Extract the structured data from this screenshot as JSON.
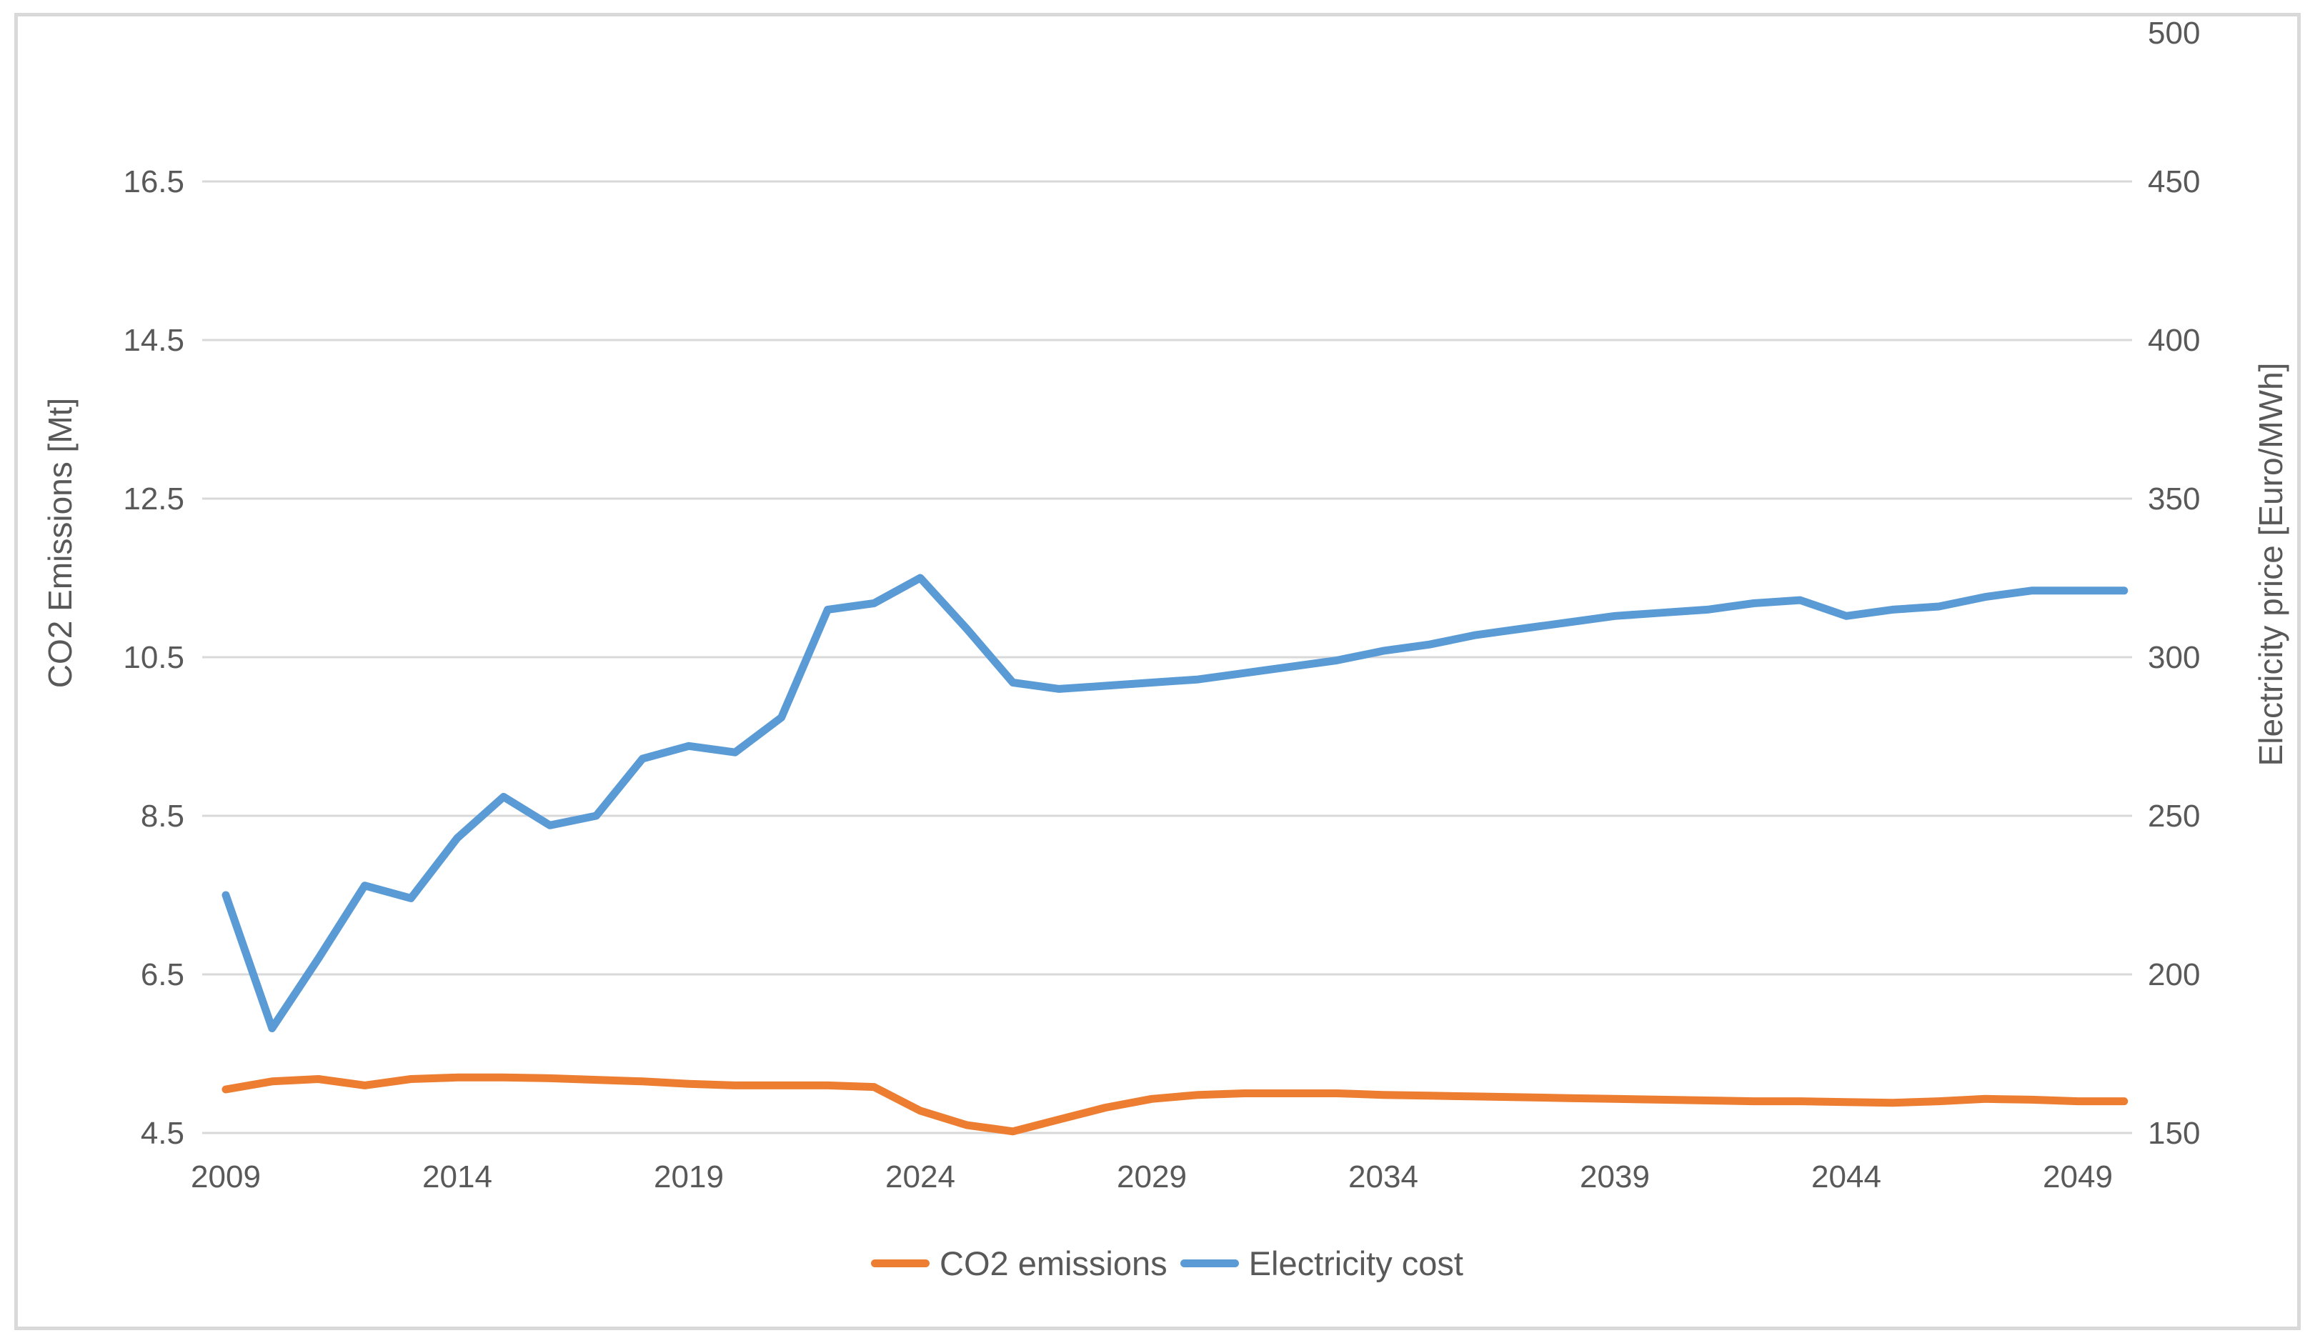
{
  "chart_data": {
    "type": "line",
    "title": "",
    "x": [
      2009,
      2010,
      2011,
      2012,
      2013,
      2014,
      2015,
      2016,
      2017,
      2018,
      2019,
      2020,
      2021,
      2022,
      2023,
      2024,
      2025,
      2026,
      2027,
      2028,
      2029,
      2030,
      2031,
      2032,
      2033,
      2034,
      2035,
      2036,
      2037,
      2038,
      2039,
      2040,
      2041,
      2042,
      2043,
      2044,
      2045,
      2046,
      2047,
      2048,
      2049,
      2050
    ],
    "x_tick_labels": [
      "2009",
      "2014",
      "2019",
      "2024",
      "2029",
      "2034",
      "2039",
      "2044",
      "2049"
    ],
    "series": [
      {
        "name": "CO2 emissions",
        "axis": "left",
        "color": "#ED7D31",
        "values": [
          5.05,
          5.15,
          5.18,
          5.1,
          5.18,
          5.2,
          5.2,
          5.19,
          5.17,
          5.15,
          5.12,
          5.1,
          5.1,
          5.1,
          5.08,
          4.78,
          4.6,
          4.52,
          4.67,
          4.82,
          4.93,
          4.98,
          5.0,
          5.0,
          5.0,
          4.98,
          4.97,
          4.96,
          4.95,
          4.94,
          4.93,
          4.92,
          4.91,
          4.9,
          4.9,
          4.89,
          4.88,
          4.9,
          4.93,
          4.92,
          4.9,
          4.9
        ]
      },
      {
        "name": "Electricity cost",
        "axis": "right",
        "color": "#5B9BD5",
        "values": [
          225,
          183,
          205,
          228,
          224,
          243,
          256,
          247,
          250,
          268,
          272,
          270,
          281,
          315,
          317,
          325,
          309,
          292,
          290,
          291,
          292,
          293,
          295,
          297,
          299,
          302,
          304,
          307,
          309,
          311,
          313,
          314,
          315,
          317,
          318,
          313,
          315,
          316,
          319,
          321,
          321,
          321
        ]
      }
    ],
    "left_axis": {
      "title": "CO2 Emissions [Mt]",
      "ticks": [
        16.5,
        14.5,
        12.5,
        10.5,
        8.5,
        6.5,
        4.5
      ],
      "min": 4.5,
      "max": 18.5
    },
    "right_axis": {
      "title": "Electricity price [Euro/MWh]",
      "ticks": [
        500,
        450,
        400,
        350,
        300,
        250,
        200,
        150
      ],
      "min": 150,
      "max": 500
    },
    "grid": "horizontal",
    "legend_position": "bottom",
    "colors": {
      "gridline": "#D9D9D9",
      "frame_border": "#D9D9D9",
      "text": "#595959",
      "background": "#FFFFFF"
    }
  }
}
